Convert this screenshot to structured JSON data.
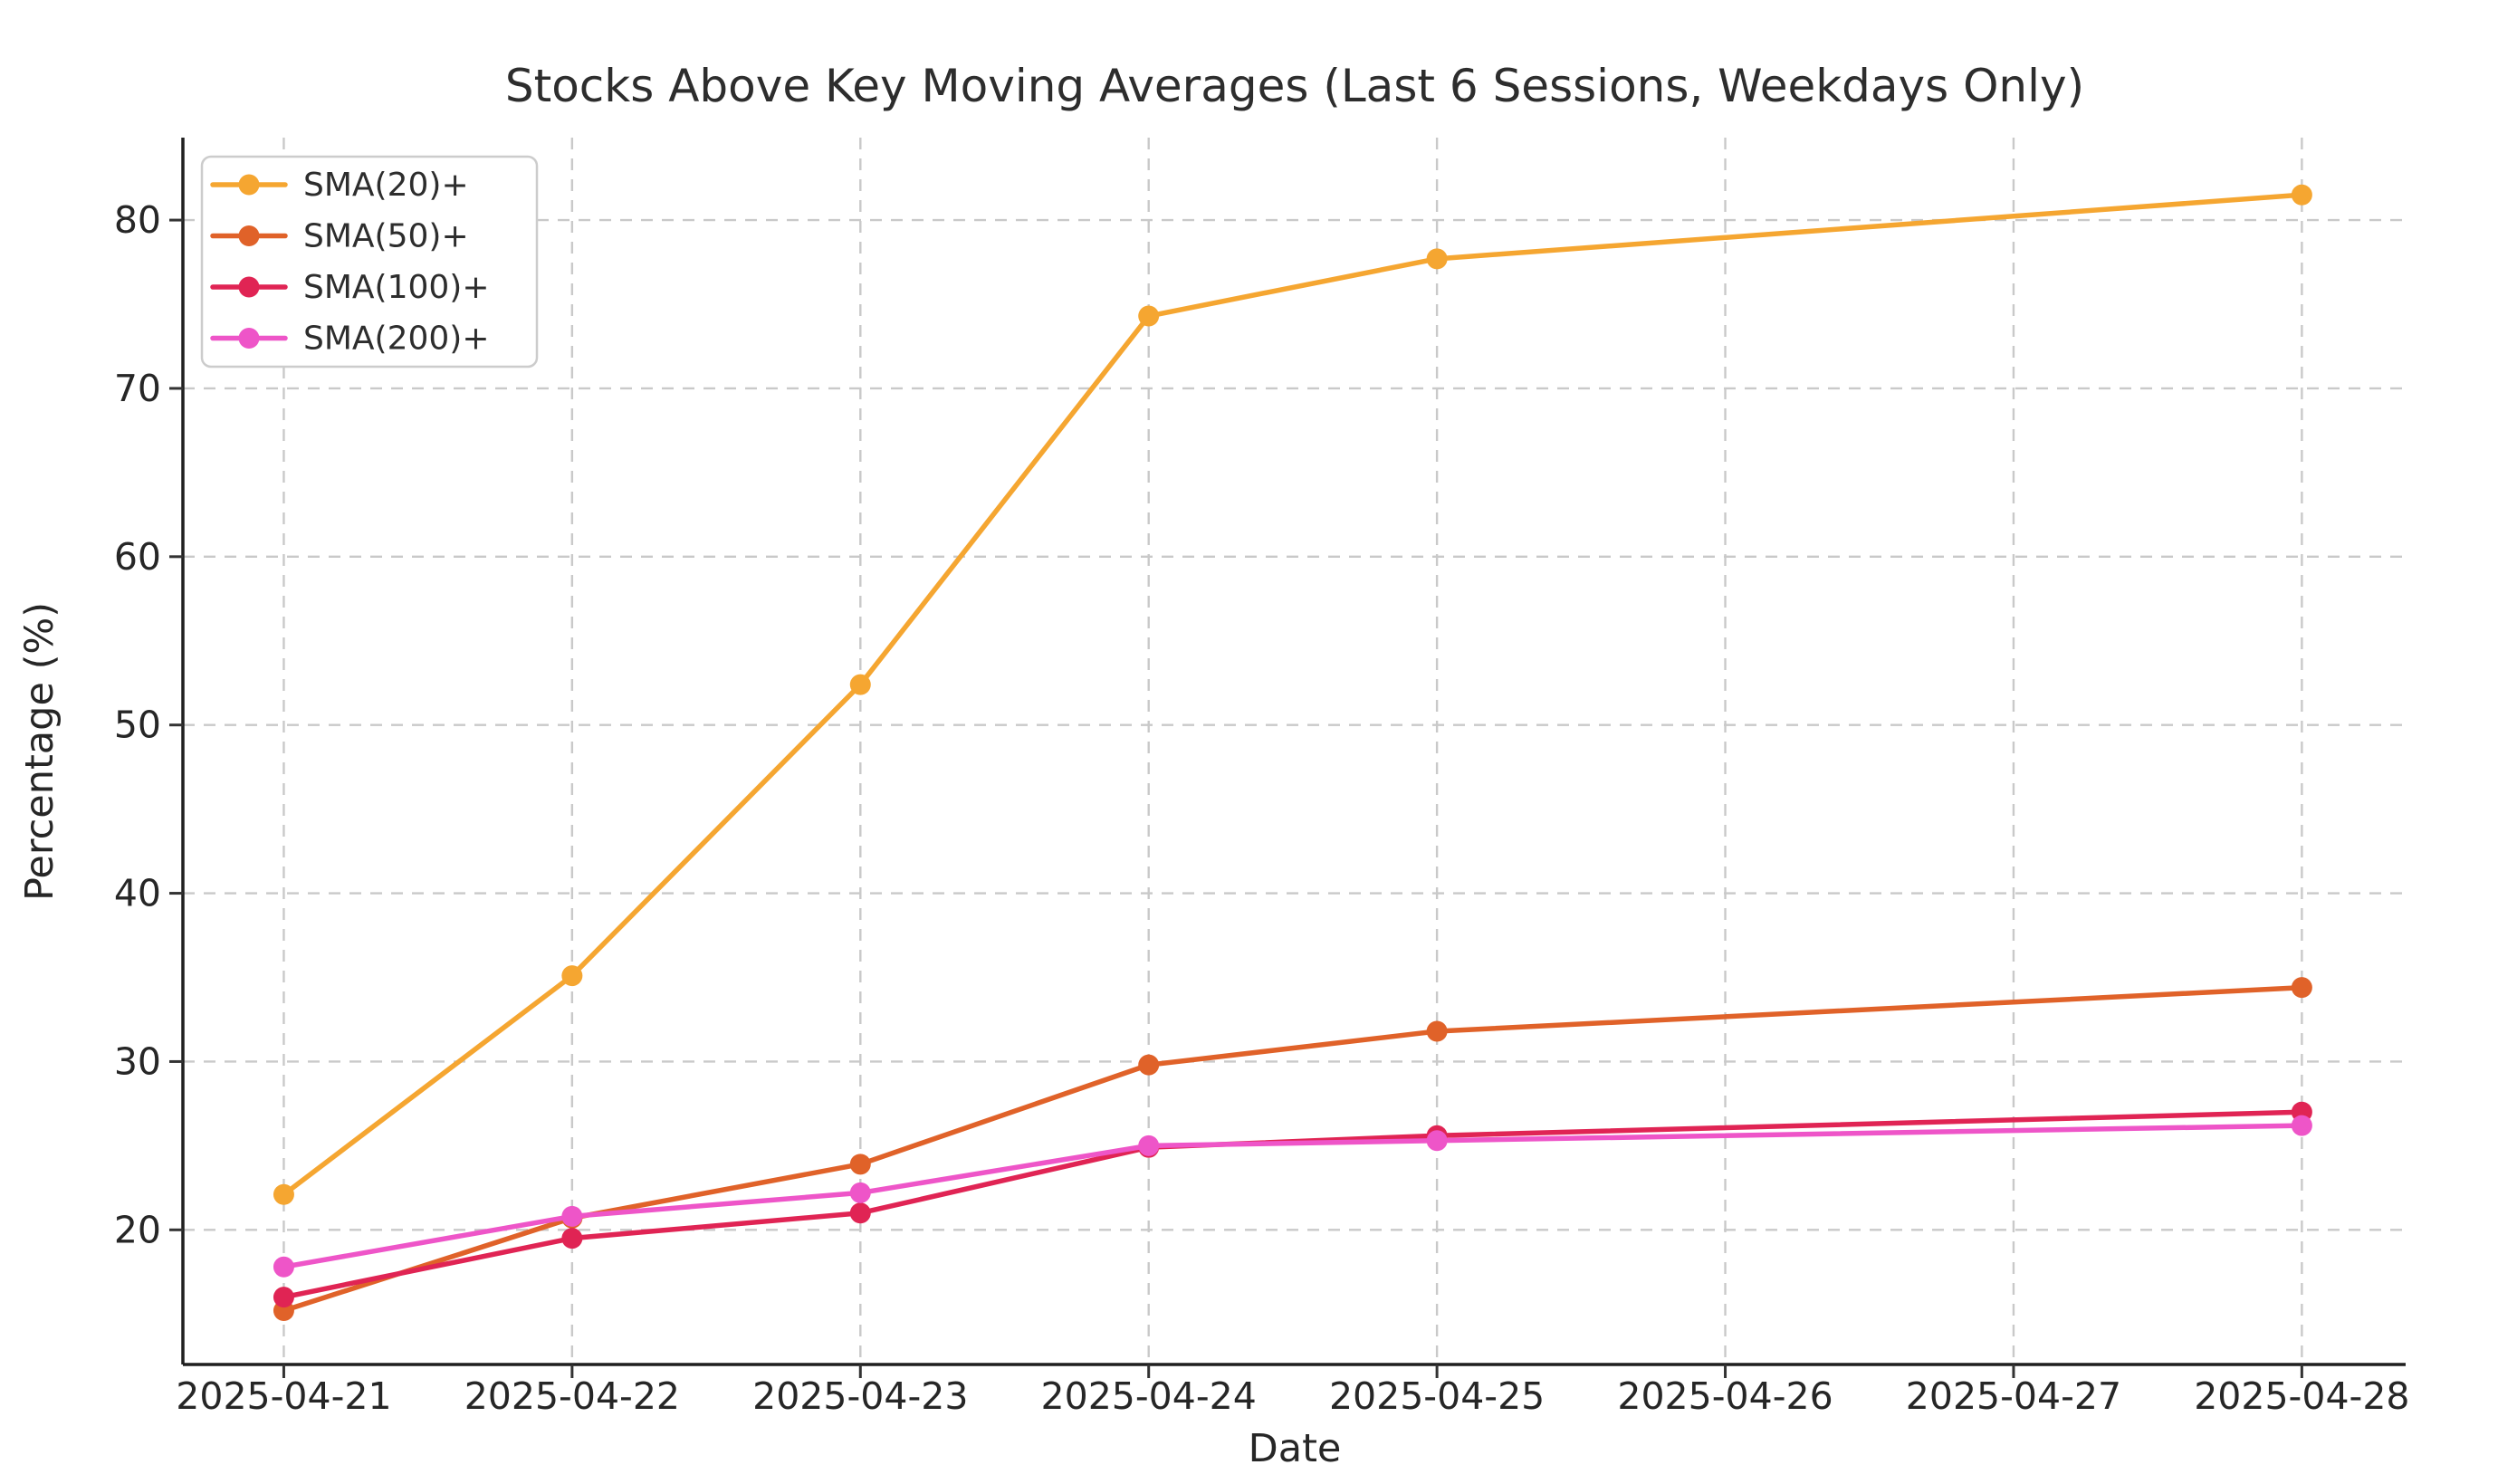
{
  "figure": {
    "title": "Stocks Above Key Moving Averages (Last 6 Sessions, Weekdays Only)",
    "xlabel": "Date",
    "ylabel": "Percentage (%)"
  },
  "chart_data": {
    "type": "line",
    "title": "Stocks Above Key Moving Averages (Last 6 Sessions, Weekdays Only)",
    "xlabel": "Date",
    "ylabel": "Percentage (%)",
    "x_axis_tick_labels": [
      "2025-04-21",
      "2025-04-22",
      "2025-04-23",
      "2025-04-24",
      "2025-04-25",
      "2025-04-26",
      "2025-04-27",
      "2025-04-28"
    ],
    "session_dates": [
      "2025-04-21",
      "2025-04-22",
      "2025-04-23",
      "2025-04-24",
      "2025-04-25",
      "2025-04-28"
    ],
    "session_day_index": [
      0,
      1,
      2,
      3,
      4,
      7
    ],
    "series": [
      {
        "name": "SMA(20)+",
        "color": "#F5A631",
        "values": [
          22.1,
          35.1,
          52.4,
          74.3,
          77.7,
          81.5
        ]
      },
      {
        "name": "SMA(50)+",
        "color": "#E06229",
        "values": [
          15.2,
          20.7,
          23.9,
          29.8,
          31.8,
          34.4
        ]
      },
      {
        "name": "SMA(100)+",
        "color": "#E02454",
        "values": [
          16.0,
          19.5,
          21.0,
          24.9,
          25.6,
          27.0
        ]
      },
      {
        "name": "SMA(200)+",
        "color": "#EE55C8",
        "values": [
          17.8,
          20.8,
          22.2,
          25.0,
          25.3,
          26.2
        ]
      }
    ],
    "y_ticks": [
      20,
      30,
      40,
      50,
      60,
      70,
      80
    ],
    "ylim": [
      12.0,
      84.9
    ],
    "xlim_day_index": [
      -0.35,
      7.36
    ],
    "grid": true,
    "grid_style": "dashed",
    "legend_position": "upper-left",
    "marker": "circle",
    "colors": {
      "grid": "#c9c9c9",
      "spine": "#1f1f1f",
      "tick": "#333333",
      "legend_border": "#cccccc",
      "background": "#ffffff"
    }
  }
}
